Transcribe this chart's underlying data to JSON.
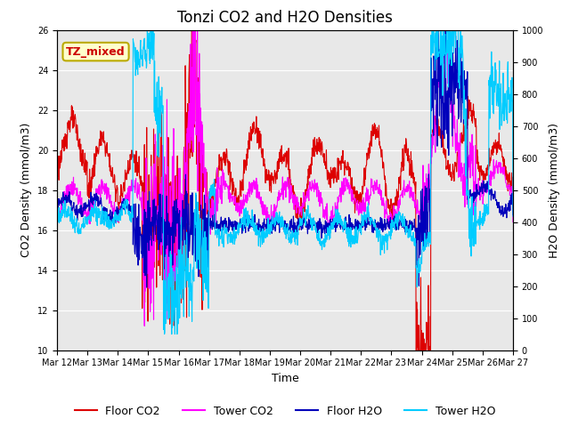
{
  "title": "Tonzi CO2 and H2O Densities",
  "xlabel": "Time",
  "ylabel_left": "CO2 Density (mmol/m3)",
  "ylabel_right": "H2O Density (mmol/m3)",
  "ylim_left": [
    10,
    26
  ],
  "ylim_right": [
    0,
    1000
  ],
  "yticks_left": [
    10,
    12,
    14,
    16,
    18,
    20,
    22,
    24,
    26
  ],
  "yticks_right": [
    0,
    100,
    200,
    300,
    400,
    500,
    600,
    700,
    800,
    900,
    1000
  ],
  "xtick_labels": [
    "Mar 12",
    "Mar 13",
    "Mar 14",
    "Mar 15",
    "Mar 16",
    "Mar 17",
    "Mar 18",
    "Mar 19",
    "Mar 20",
    "Mar 21",
    "Mar 22",
    "Mar 23",
    "Mar 24",
    "Mar 25",
    "Mar 26",
    "Mar 27"
  ],
  "annotation_text": "TZ_mixed",
  "annotation_color": "#cc0000",
  "annotation_bg": "#ffffcc",
  "annotation_border": "#bbaa00",
  "floor_co2_color": "#dd0000",
  "tower_co2_color": "#ff00ff",
  "floor_h2o_color": "#0000bb",
  "tower_h2o_color": "#00ccff",
  "legend_labels": [
    "Floor CO2",
    "Tower CO2",
    "Floor H2O",
    "Tower H2O"
  ],
  "background_color": "#e8e8e8",
  "grid_color": "#ffffff",
  "title_fontsize": 12,
  "label_fontsize": 9,
  "tick_fontsize": 7,
  "legend_fontsize": 9,
  "linewidth": 0.8,
  "n_points": 1440
}
